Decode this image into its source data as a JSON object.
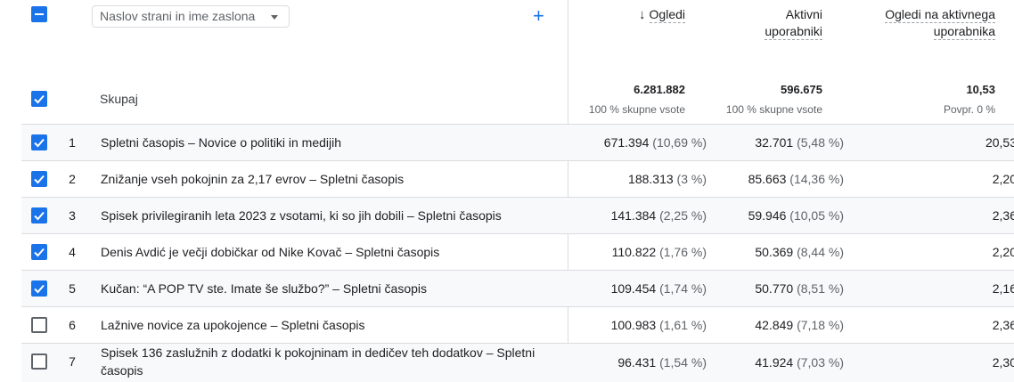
{
  "header": {
    "dimension_select": "Naslov strani in ime zaslona",
    "col_views_arrow": "↓",
    "col_views": "Ogledi",
    "col_active_line1": "Aktivni",
    "col_active_line2": "uporabniki",
    "col_vpu_line1": "Ogledi na aktivnega",
    "col_vpu_line2": "uporabnika",
    "add_icon": "+"
  },
  "totals": {
    "label": "Skupaj",
    "views": "6.281.882",
    "views_sub": "100 % skupne vsote",
    "active": "596.675",
    "active_sub": "100 % skupne vsote",
    "vpu": "10,53",
    "vpu_sub": "Povpr. 0 %"
  },
  "rows": [
    {
      "num": "1",
      "title": "Spletni časopis – Novice o politiki in medijih",
      "views": "671.394",
      "views_pct": "(10,69 %)",
      "active": "32.701",
      "active_pct": "(5,48 %)",
      "vpu": "20,53",
      "checked": true
    },
    {
      "num": "2",
      "title": "Znižanje vseh pokojnin za 2,17 evrov – Spletni časopis",
      "views": "188.313",
      "views_pct": "(3 %)",
      "active": "85.663",
      "active_pct": "(14,36 %)",
      "vpu": "2,20",
      "checked": true
    },
    {
      "num": "3",
      "title": "Spisek privilegiranih leta 2023 z vsotami, ki so jih dobili – Spletni časopis",
      "views": "141.384",
      "views_pct": "(2,25 %)",
      "active": "59.946",
      "active_pct": "(10,05 %)",
      "vpu": "2,36",
      "checked": true
    },
    {
      "num": "4",
      "title": "Denis Avdić je večji dobičkar od Nike Kovač – Spletni časopis",
      "views": "110.822",
      "views_pct": "(1,76 %)",
      "active": "50.369",
      "active_pct": "(8,44 %)",
      "vpu": "2,20",
      "checked": true
    },
    {
      "num": "5",
      "title": "Kučan: “A POP TV ste. Imate še službo?” – Spletni časopis",
      "views": "109.454",
      "views_pct": "(1,74 %)",
      "active": "50.770",
      "active_pct": "(8,51 %)",
      "vpu": "2,16",
      "checked": true
    },
    {
      "num": "6",
      "title": "Lažnive novice za upokojence – Spletni časopis",
      "views": "100.983",
      "views_pct": "(1,61 %)",
      "active": "42.849",
      "active_pct": "(7,18 %)",
      "vpu": "2,36",
      "checked": false
    },
    {
      "num": "7",
      "title": "Spisek 136 zaslužnih z dodatki k pokojninam in dedičev teh dodatkov – Spletni časopis",
      "views": "96.431",
      "views_pct": "(1,54 %)",
      "active": "41.924",
      "active_pct": "(7,03 %)",
      "vpu": "2,30",
      "checked": false
    }
  ],
  "colors": {
    "accent": "#1a73e8",
    "border": "#dadce0",
    "shade": "#f8f9fa"
  }
}
